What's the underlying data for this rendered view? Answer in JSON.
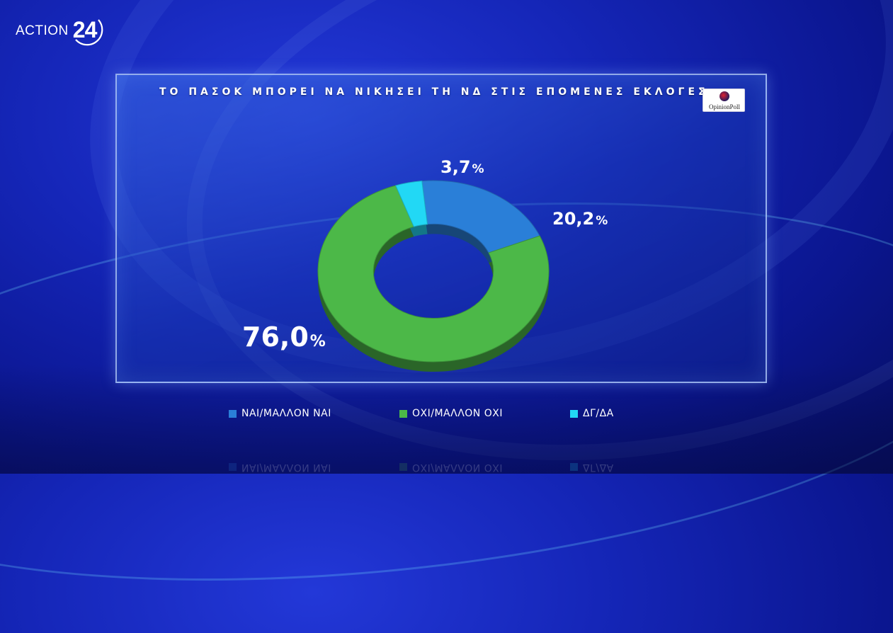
{
  "brand": {
    "logo_text": "ACTION",
    "logo_number": "24"
  },
  "badge": {
    "label": "OpinionPoll"
  },
  "chart_data": {
    "type": "pie",
    "title": "ΤΟ ΠΑΣΟΚ ΜΠΟΡΕΙ ΝΑ ΝΙΚΗΣΕΙ ΤΗ ΝΔ ΣΤΙΣ ΕΠΟΜΕΝΕΣ ΕΚΛΟΓΕΣ;",
    "categories": [
      "ΝΑΙ/ΜΑΛΛΟΝ ΝΑΙ",
      "ΟΧΙ/ΜΑΛΛΟΝ ΟΧΙ",
      "ΔΓ/ΔΑ"
    ],
    "values": [
      20.2,
      76.0,
      3.7
    ],
    "value_labels": [
      "20,2",
      "76,0",
      "3,7"
    ],
    "unit": "%",
    "colors": [
      "#2a7fd8",
      "#4cb848",
      "#22d8f5"
    ],
    "legend_position": "bottom"
  }
}
